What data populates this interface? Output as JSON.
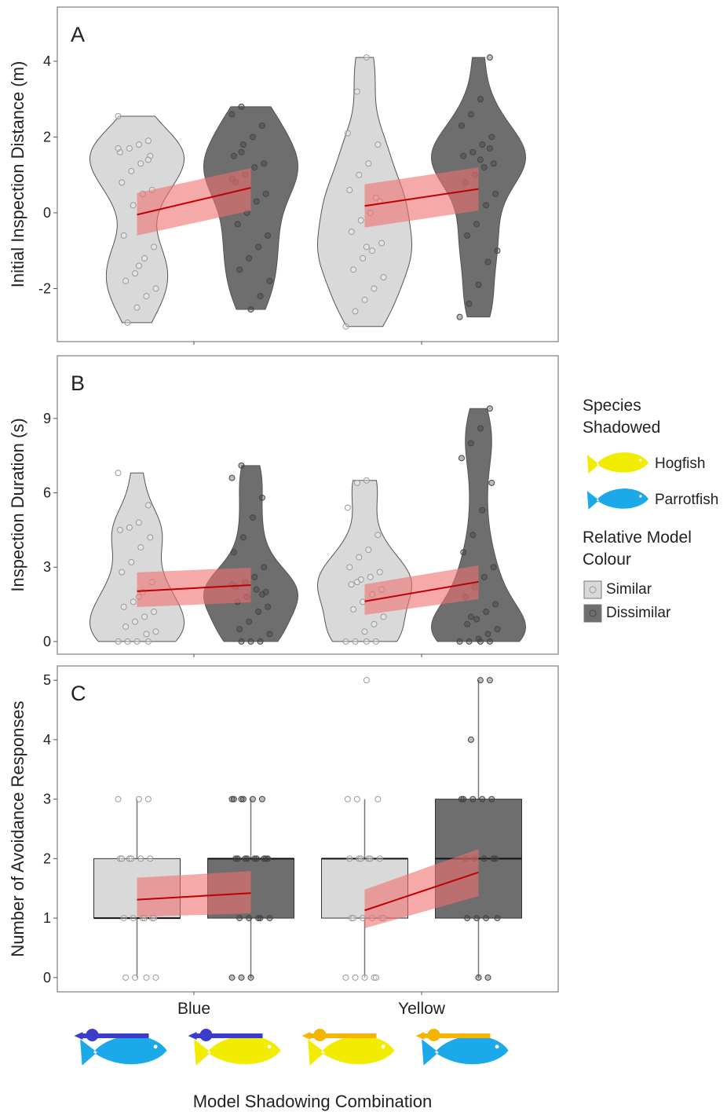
{
  "chart_data": [
    {
      "type": "violin",
      "panel": "A",
      "ylabel": "Initial Inspection Distance (m)",
      "ylim": [
        -3.4,
        5.43
      ],
      "yticks": [
        -2,
        0,
        2,
        4
      ],
      "series": [
        {
          "values": [
            [
              2.55,
              1.9,
              1.8,
              1.7,
              1.6,
              1.5,
              1.3,
              1.1,
              0.8,
              0.6,
              0.5,
              0.2,
              -0.6,
              -0.9,
              -1.2,
              -1.6,
              -1.8,
              -2.0,
              -2.2,
              -2.5,
              -2.9,
              1.7,
              1.4,
              -1.4
            ],
            [
              4.1,
              3.2,
              2.1,
              1.8,
              1.3,
              1.0,
              0.6,
              0.3,
              0.0,
              -0.2,
              -0.5,
              -0.8,
              -1.0,
              -1.2,
              -1.5,
              -1.7,
              -2.0,
              -2.3,
              -2.6,
              -3.0,
              0.4,
              -0.9
            ]
          ]
        },
        {
          "values": [
            [
              2.8,
              2.6,
              2.3,
              2.0,
              1.8,
              1.5,
              1.3,
              1.2,
              1.0,
              0.8,
              0.5,
              0.3,
              0.0,
              -0.3,
              -0.6,
              -0.9,
              -1.2,
              -1.5,
              -1.8,
              -2.2,
              -2.55,
              1.6,
              0.9
            ],
            [
              4.1,
              3.0,
              2.6,
              2.3,
              2.0,
              1.8,
              1.6,
              1.5,
              1.3,
              1.2,
              1.0,
              0.8,
              0.5,
              0.2,
              -0.3,
              -0.6,
              -1.0,
              -1.3,
              -1.9,
              -2.4,
              -2.75,
              1.7,
              1.4
            ]
          ]
        }
      ],
      "fit": {
        "color": "#c00000",
        "band_color": "#f07070",
        "values": [
          [
            -0.05,
            0.66
          ],
          [
            0.18,
            0.63
          ]
        ],
        "lower": [
          [
            -0.6,
            0.06
          ],
          [
            -0.39,
            0.06
          ]
        ],
        "upper": [
          [
            0.52,
            1.18
          ],
          [
            0.75,
            1.2
          ]
        ]
      }
    },
    {
      "type": "violin",
      "panel": "B",
      "ylabel": "Inspection Duration (s)",
      "ylim": [
        -0.51,
        11.53
      ],
      "yticks": [
        0,
        3,
        6,
        9
      ],
      "series": [
        {
          "values": [
            [
              6.8,
              5.5,
              4.8,
              4.6,
              4.5,
              4.2,
              3.8,
              3.2,
              2.8,
              2.4,
              2.0,
              1.6,
              1.4,
              1.2,
              1.0,
              0.8,
              0.6,
              0.4,
              0.3,
              0,
              0,
              0,
              0,
              1.8
            ],
            [
              6.5,
              6.4,
              5.4,
              4.3,
              3.7,
              3.4,
              3.0,
              2.8,
              2.6,
              2.5,
              2.3,
              2.1,
              1.9,
              1.6,
              1.3,
              1.0,
              0.7,
              0.4,
              0,
              0,
              0,
              0,
              2.4
            ]
          ]
        },
        {
          "values": [
            [
              7.1,
              6.6,
              5.8,
              5.0,
              4.2,
              3.6,
              3.0,
              2.6,
              2.4,
              2.2,
              2.0,
              2.1,
              1.8,
              1.6,
              1.4,
              1.2,
              0.8,
              0.5,
              0.3,
              0,
              0,
              0,
              2.3,
              1.9
            ],
            [
              9.4,
              8.6,
              8.0,
              7.4,
              6.4,
              5.3,
              4.3,
              3.6,
              3.0,
              2.6,
              2.2,
              1.8,
              1.5,
              1.2,
              0.9,
              0.7,
              0.5,
              0.3,
              0.1,
              0,
              0,
              0,
              0,
              1.0
            ]
          ]
        }
      ],
      "fit": {
        "color": "#c00000",
        "band_color": "#f07070",
        "values": [
          [
            2.03,
            2.28
          ],
          [
            1.62,
            2.41
          ]
        ],
        "lower": [
          [
            1.39,
            1.58
          ],
          [
            1.08,
            1.71
          ]
        ],
        "upper": [
          [
            2.79,
            2.98
          ],
          [
            2.31,
            3.07
          ]
        ]
      }
    },
    {
      "type": "box",
      "panel": "C",
      "ylabel": "Number of Avoidance Responses",
      "ylim": [
        -0.24,
        5.24
      ],
      "yticks": [
        0,
        1,
        2,
        3,
        4,
        5
      ],
      "categories": [
        "Blue",
        "Yellow"
      ],
      "xlabel": "Model Shadowing Combination",
      "series": [
        {
          "values": [
            [
              3,
              3,
              3,
              2,
              2,
              2,
              2,
              2,
              2,
              1,
              1,
              1,
              1,
              1,
              1,
              0,
              0,
              0,
              0
            ],
            [
              5,
              3,
              3,
              3,
              2,
              2,
              2,
              2,
              2,
              2,
              1,
              1,
              1,
              1,
              1,
              1,
              0,
              0,
              0,
              0,
              0
            ]
          ],
          "box": {
            "min": [
              0,
              0
            ],
            "q1": [
              1,
              1
            ],
            "median": [
              1,
              2
            ],
            "q3": [
              2,
              2
            ],
            "max": [
              3,
              3
            ]
          }
        },
        {
          "values": [
            [
              3,
              3,
              3,
              3,
              3,
              3,
              2,
              2,
              2,
              2,
              2,
              2,
              2,
              2,
              2,
              1,
              1,
              1,
              1,
              1,
              0,
              0,
              0
            ],
            [
              5,
              5,
              4,
              3,
              3,
              3,
              3,
              3,
              2,
              2,
              2,
              2,
              2,
              1,
              1,
              1,
              1,
              0,
              0
            ]
          ],
          "box": {
            "min": [
              0,
              0
            ],
            "q1": [
              1,
              1
            ],
            "median": [
              2,
              2
            ],
            "q3": [
              2,
              3
            ],
            "max": [
              3,
              5
            ]
          }
        }
      ],
      "fit": {
        "color": "#c00000",
        "band_color": "#f07070",
        "values": [
          [
            1.31,
            1.42
          ],
          [
            1.13,
            1.77
          ]
        ],
        "lower": [
          [
            1.02,
            1.08
          ],
          [
            0.83,
            1.37
          ]
        ],
        "upper": [
          [
            1.68,
            1.79
          ],
          [
            1.48,
            2.16
          ]
        ]
      }
    }
  ],
  "legend": {
    "species": {
      "title": "Species Shadowed",
      "items": [
        {
          "label": "Hogfish",
          "color": "#f2ec00"
        },
        {
          "label": "Parrotfish",
          "color": "#1ba9ea"
        }
      ]
    },
    "colour": {
      "title": "Relative Model Colour",
      "items": [
        {
          "label": "Similar",
          "color": "#d9d9d9"
        },
        {
          "label": "Dissimilar",
          "color": "#6e6e6e"
        }
      ]
    }
  }
}
